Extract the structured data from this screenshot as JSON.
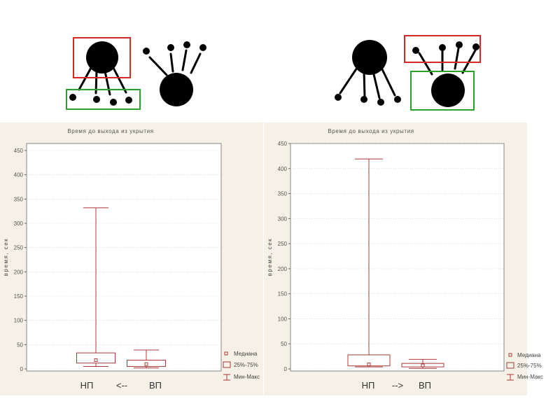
{
  "colors": {
    "box": "#a83a3a",
    "red_frame": "#d62728",
    "green_frame": "#2ca02c",
    "panel_bg": "#f6f1e6",
    "grid": "#c8c8c8"
  },
  "chart_data": [
    {
      "type": "box",
      "title": "Время до выхода из укрытия",
      "ylabel": "время, сек",
      "ylim": [
        0,
        450
      ],
      "yticks": [
        0,
        50,
        100,
        150,
        200,
        250,
        300,
        350,
        400,
        450
      ],
      "categories": [
        "НП",
        "ВП"
      ],
      "arrow": "<--",
      "boxes": [
        {
          "category": "НП",
          "min": 5,
          "q1": 12,
          "median": 18,
          "q3": 33,
          "max": 332
        },
        {
          "category": "ВП",
          "min": 2,
          "q1": 5,
          "median": 10,
          "q3": 18,
          "max": 39
        }
      ],
      "legend": [
        "Медиана",
        "25%-75%",
        "Мин-Макс"
      ],
      "legend_position": "bottom-right",
      "grid": true
    },
    {
      "type": "box",
      "title": "Время до выхода из укрытия",
      "ylabel": "время, сек",
      "ylim": [
        0,
        450
      ],
      "yticks": [
        0,
        50,
        100,
        150,
        200,
        250,
        300,
        350,
        400,
        450
      ],
      "categories": [
        "НП",
        "ВП"
      ],
      "arrow": "-->",
      "boxes": [
        {
          "category": "НП",
          "min": 4,
          "q1": 6,
          "median": 9,
          "q3": 28,
          "max": 419
        },
        {
          "category": "ВП",
          "min": 1,
          "q1": 4,
          "median": 7,
          "q3": 11,
          "max": 19
        }
      ],
      "legend": [
        "Медиана",
        "25%-75%",
        "Мин-Макс"
      ],
      "legend_position": "bottom-right",
      "grid": true
    }
  ]
}
